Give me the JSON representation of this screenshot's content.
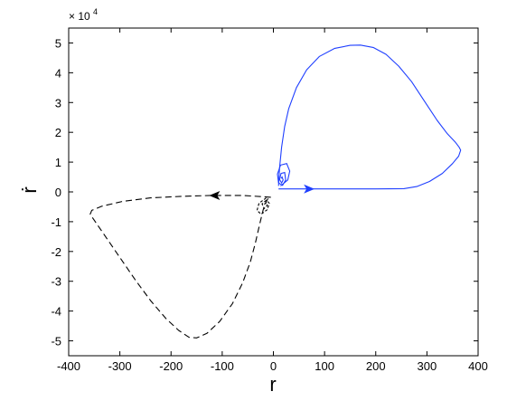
{
  "chart_data": {
    "type": "line",
    "title": "",
    "xlabel": "r",
    "ylabel": "ṙ",
    "y_multiplier_label": "× 10",
    "y_multiplier_exponent": "4",
    "xlim": [
      -400,
      400
    ],
    "ylim": [
      -5.5,
      5.5
    ],
    "y_scale_factor": 10000,
    "grid": false,
    "legend": "none",
    "x_ticks": [
      -400,
      -300,
      -200,
      -100,
      0,
      100,
      200,
      300,
      400
    ],
    "y_ticks": [
      -5,
      -4,
      -3,
      -2,
      -1,
      0,
      1,
      2,
      3,
      4,
      5
    ],
    "series": [
      {
        "color": "#1f3fff",
        "style": "solid",
        "arrow_at": [
          70,
          0.1
        ],
        "arrow_direction": "right",
        "points": [
          [
            10,
            0.2
          ],
          [
            12,
            0.8
          ],
          [
            16,
            1.5
          ],
          [
            22,
            2.2
          ],
          [
            30,
            2.8
          ],
          [
            45,
            3.5
          ],
          [
            65,
            4.1
          ],
          [
            90,
            4.55
          ],
          [
            120,
            4.82
          ],
          [
            150,
            4.92
          ],
          [
            170,
            4.93
          ],
          [
            195,
            4.85
          ],
          [
            220,
            4.62
          ],
          [
            245,
            4.22
          ],
          [
            270,
            3.7
          ],
          [
            295,
            3.05
          ],
          [
            320,
            2.4
          ],
          [
            340,
            1.95
          ],
          [
            355,
            1.68
          ],
          [
            363,
            1.5
          ],
          [
            366,
            1.4
          ],
          [
            362,
            1.2
          ],
          [
            350,
            0.95
          ],
          [
            330,
            0.62
          ],
          [
            305,
            0.35
          ],
          [
            280,
            0.18
          ],
          [
            255,
            0.11
          ],
          [
            200,
            0.1
          ],
          [
            120,
            0.1
          ],
          [
            60,
            0.1
          ],
          [
            10,
            0.1
          ]
        ],
        "spiral": [
          [
            14,
            0.2
          ],
          [
            28,
            0.4
          ],
          [
            32,
            0.7
          ],
          [
            26,
            0.95
          ],
          [
            14,
            0.9
          ],
          [
            8,
            0.6
          ],
          [
            10,
            0.3
          ],
          [
            18,
            0.22
          ],
          [
            24,
            0.4
          ],
          [
            22,
            0.65
          ],
          [
            15,
            0.62
          ],
          [
            12,
            0.42
          ],
          [
            16,
            0.3
          ],
          [
            19,
            0.4
          ],
          [
            17,
            0.5
          ],
          [
            15,
            0.45
          ]
        ]
      },
      {
        "color": "#000000",
        "style": "dashed",
        "arrow_at": [
          -115,
          -0.12
        ],
        "arrow_direction": "left",
        "points": [
          [
            -5,
            -0.18
          ],
          [
            -60,
            -0.12
          ],
          [
            -120,
            -0.12
          ],
          [
            -180,
            -0.15
          ],
          [
            -240,
            -0.2
          ],
          [
            -295,
            -0.32
          ],
          [
            -335,
            -0.48
          ],
          [
            -355,
            -0.62
          ],
          [
            -358,
            -0.75
          ],
          [
            -350,
            -0.95
          ],
          [
            -330,
            -1.45
          ],
          [
            -300,
            -2.2
          ],
          [
            -270,
            -2.95
          ],
          [
            -240,
            -3.65
          ],
          [
            -210,
            -4.25
          ],
          [
            -185,
            -4.65
          ],
          [
            -165,
            -4.88
          ],
          [
            -150,
            -4.9
          ],
          [
            -130,
            -4.75
          ],
          [
            -105,
            -4.35
          ],
          [
            -80,
            -3.75
          ],
          [
            -60,
            -3.05
          ],
          [
            -45,
            -2.35
          ],
          [
            -35,
            -1.7
          ],
          [
            -27,
            -1.1
          ],
          [
            -20,
            -0.6
          ],
          [
            -14,
            -0.32
          ],
          [
            -10,
            -0.22
          ]
        ],
        "spiral": [
          [
            -14,
            -0.2
          ],
          [
            -28,
            -0.38
          ],
          [
            -32,
            -0.62
          ],
          [
            -24,
            -0.75
          ],
          [
            -12,
            -0.6
          ],
          [
            -8,
            -0.38
          ],
          [
            -14,
            -0.28
          ],
          [
            -22,
            -0.4
          ],
          [
            -18,
            -0.56
          ],
          [
            -12,
            -0.46
          ],
          [
            -14,
            -0.36
          ],
          [
            -18,
            -0.42
          ]
        ]
      }
    ]
  }
}
